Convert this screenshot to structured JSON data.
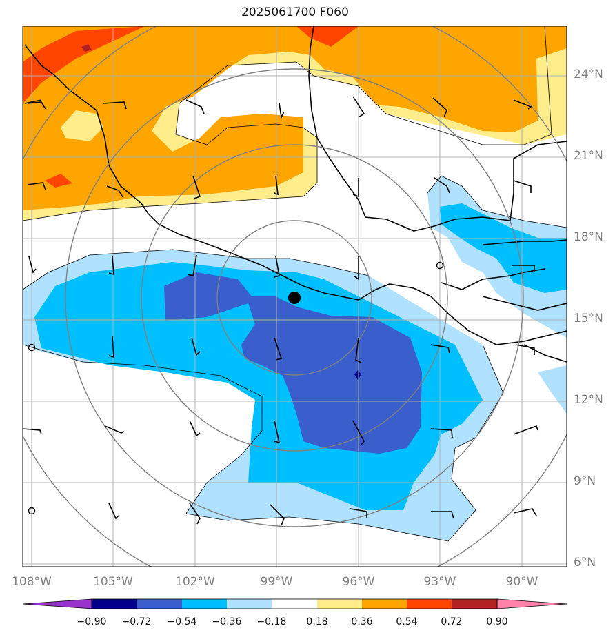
{
  "title": "2025061700 F060",
  "lat_labels": [
    "24°N",
    "21°N",
    "18°N",
    "15°N",
    "12°N",
    "9°N",
    "6°N"
  ],
  "lon_labels": [
    "108°W",
    "105°W",
    "102°W",
    "99°W",
    "96°W",
    "93°W",
    "90°W"
  ],
  "colorbar": {
    "ticks": [
      "−0.90",
      "−0.72",
      "−0.54",
      "−0.36",
      "−0.18",
      "0.18",
      "0.36",
      "0.54",
      "0.72",
      "0.90"
    ],
    "colors": [
      "#9932cc",
      "#00008b",
      "#3a5fcd",
      "#00bfff",
      "#b0e2ff",
      "#ffffff",
      "#ffec8b",
      "#ffa500",
      "#ff4500",
      "#b22222",
      "#ff82ab"
    ]
  },
  "marker": {
    "lat": 15.8,
    "lon": -98.3
  }
}
